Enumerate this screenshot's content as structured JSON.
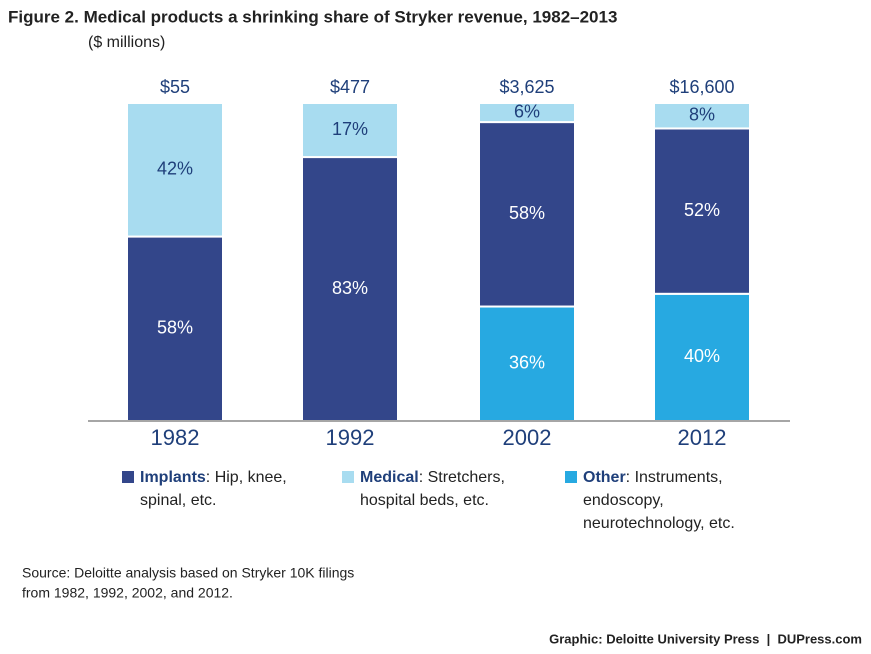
{
  "chart_data": {
    "type": "stacked_bar",
    "title": "Figure 2. Medical products a shrinking share of Stryker revenue, 1982–2013",
    "subtitle": "($ millions)",
    "categories": [
      "1982",
      "1992",
      "2002",
      "2012"
    ],
    "totals": {
      "values": [
        55,
        477,
        3625,
        16600
      ],
      "value_labels": [
        "$55",
        "$477",
        "$3,625",
        "$16,600"
      ]
    },
    "ylim": [
      0,
      100
    ],
    "series": [
      {
        "name": "Implants",
        "description": [
          ": Hip, knee,",
          "spinal, etc."
        ],
        "color": "#33468a",
        "label_color": "#ffffff",
        "values": [
          58,
          83,
          58,
          52
        ],
        "value_labels": [
          "58%",
          "83%",
          "58%",
          "52%"
        ]
      },
      {
        "name": "Medical",
        "description": [
          ": Stretchers,",
          "hospital beds, etc."
        ],
        "color": "#a8dcf0",
        "label_color": "#1f3f7a",
        "values": [
          42,
          17,
          6,
          8
        ],
        "value_labels": [
          "42%",
          "17%",
          "6%",
          "8%"
        ]
      },
      {
        "name": "Other",
        "description": [
          ": Instruments,",
          "endoscopy,",
          "neurotechnology, etc."
        ],
        "color": "#27a9e1",
        "label_color": "#ffffff",
        "values": [
          null,
          null,
          36,
          40
        ],
        "value_labels": [
          null,
          null,
          "36%",
          "40%"
        ]
      }
    ],
    "source": [
      "Source: Deloitte analysis based on Stryker 10K filings",
      "from 1982, 1992, 2002, and 2012."
    ],
    "credit": "Graphic: Deloitte University Press  |  DUPress.com"
  }
}
